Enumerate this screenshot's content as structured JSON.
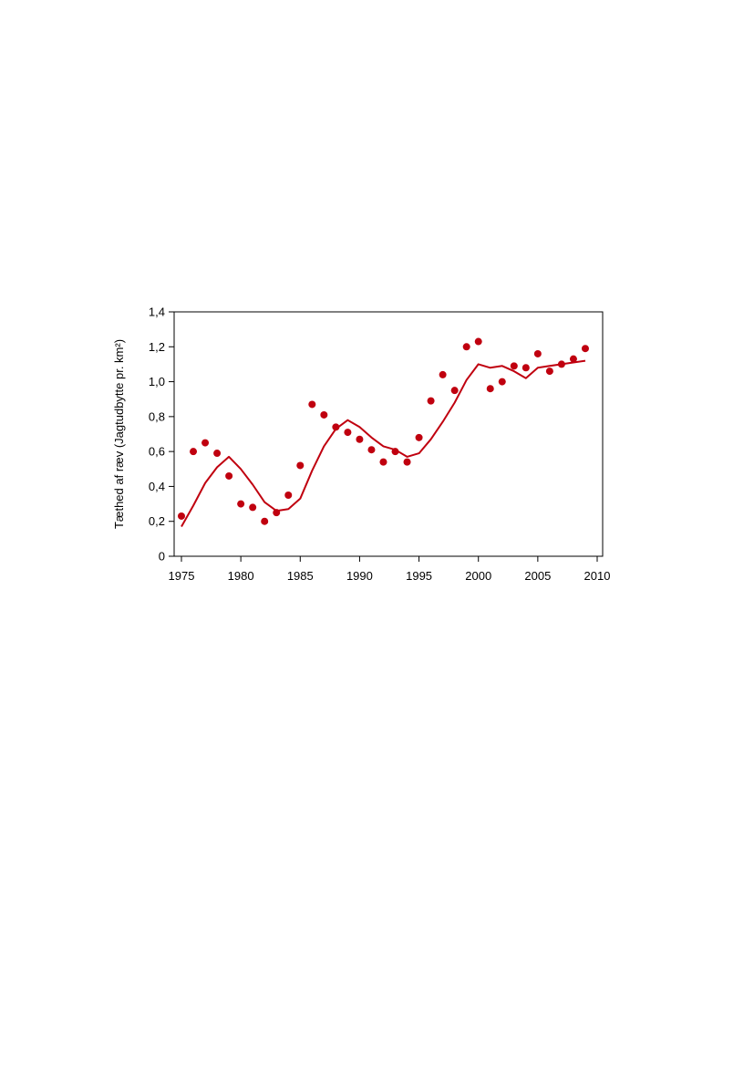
{
  "chart_data": {
    "type": "line",
    "title": "",
    "xlabel": "",
    "ylabel": "Tæthed af ræv (Jagtudbytte pr. km²)",
    "xlim": [
      1975,
      2010
    ],
    "ylim": [
      0,
      1.4
    ],
    "x_ticks": [
      1975,
      1980,
      1985,
      1990,
      1995,
      2000,
      2005,
      2010
    ],
    "x_tick_labels": [
      "1975",
      "1980",
      "1985",
      "1990",
      "1995",
      "2000",
      "2005",
      "2010"
    ],
    "y_ticks": [
      0,
      0.2,
      0.4,
      0.6,
      0.8,
      1.0,
      1.2,
      1.4
    ],
    "y_tick_labels": [
      "0",
      "0,2",
      "0,4",
      "0,6",
      "0,8",
      "1,0",
      "1,2",
      "1,4"
    ],
    "grid": false,
    "color": "#c0000f",
    "series": [
      {
        "kind": "scatter",
        "x": [
          1975,
          1976,
          1977,
          1978,
          1979,
          1980,
          1981,
          1982,
          1983,
          1984,
          1985,
          1986,
          1987,
          1988,
          1989,
          1990,
          1991,
          1992,
          1993,
          1994,
          1995,
          1996,
          1997,
          1998,
          1999,
          2000,
          2001,
          2002,
          2003,
          2004,
          2005,
          2006,
          2007,
          2008,
          2009
        ],
        "y": [
          0.23,
          0.6,
          0.65,
          0.59,
          0.46,
          0.3,
          0.28,
          0.2,
          0.25,
          0.35,
          0.52,
          0.87,
          0.81,
          0.74,
          0.71,
          0.67,
          0.61,
          0.54,
          0.6,
          0.54,
          0.68,
          0.89,
          1.04,
          0.95,
          1.2,
          1.23,
          0.96,
          1.0,
          1.09,
          1.08,
          1.16,
          1.06,
          1.1,
          1.13,
          1.19
        ]
      },
      {
        "kind": "line",
        "x": [
          1975,
          1976,
          1977,
          1978,
          1979,
          1980,
          1981,
          1982,
          1983,
          1984,
          1985,
          1986,
          1987,
          1988,
          1989,
          1990,
          1991,
          1992,
          1993,
          1994,
          1995,
          1996,
          1997,
          1998,
          1999,
          2000,
          2001,
          2002,
          2003,
          2004,
          2005,
          2006,
          2007,
          2008,
          2009
        ],
        "y": [
          0.17,
          0.29,
          0.42,
          0.51,
          0.57,
          0.5,
          0.41,
          0.31,
          0.26,
          0.27,
          0.33,
          0.49,
          0.63,
          0.73,
          0.78,
          0.74,
          0.68,
          0.63,
          0.61,
          0.57,
          0.59,
          0.67,
          0.77,
          0.88,
          1.01,
          1.1,
          1.08,
          1.09,
          1.06,
          1.02,
          1.08,
          1.09,
          1.1,
          1.11,
          1.12
        ]
      }
    ]
  }
}
